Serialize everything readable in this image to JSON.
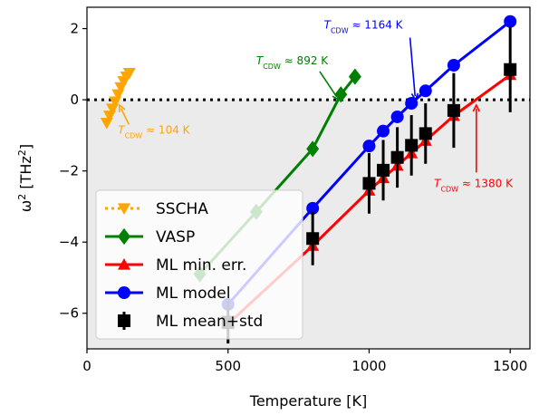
{
  "chart_data": {
    "type": "line",
    "xlabel": "Temperature [K]",
    "ylabel_main": "ω",
    "ylabel_sup": "2",
    "ylabel_unit_pre": " [THz",
    "ylabel_unit_sup": "2",
    "ylabel_unit_post": "]",
    "xlim": [
      0,
      1570
    ],
    "ylim": [
      -7.0,
      2.6
    ],
    "xticks": [
      0,
      500,
      1000,
      1500
    ],
    "xtick_labels": [
      "0",
      "500",
      "1000",
      "1500"
    ],
    "yticks": [
      2,
      0,
      -2,
      -4,
      -6
    ],
    "ytick_labels": [
      "2",
      "0",
      "−2",
      "−4",
      "−6"
    ],
    "negative_region_color": "#ebebeb",
    "series": [
      {
        "name": "SSCHA",
        "color": "#ffa500",
        "marker": "triangle-down",
        "linestyle": "dotted",
        "x": [
          70,
          80,
          90,
          100,
          110,
          120,
          130,
          140,
          150
        ],
        "y": [
          -0.65,
          -0.45,
          -0.25,
          -0.05,
          0.15,
          0.35,
          0.52,
          0.65,
          0.75
        ]
      },
      {
        "name": "VASP",
        "color": "#008000",
        "marker": "diamond",
        "linestyle": "solid",
        "x": [
          400,
          600,
          800,
          900,
          950
        ],
        "y": [
          -4.9,
          -3.15,
          -1.38,
          0.15,
          0.65
        ]
      },
      {
        "name": "ML min. err.",
        "color": "#ff0000",
        "marker": "triangle-up",
        "linestyle": "solid",
        "x": [
          500,
          800,
          1000,
          1050,
          1100,
          1150,
          1200,
          1300,
          1500
        ],
        "y": [
          -6.3,
          -4.1,
          -2.55,
          -2.2,
          -1.85,
          -1.5,
          -1.15,
          -0.45,
          0.7
        ]
      },
      {
        "name": "ML model",
        "color": "#0000ff",
        "marker": "circle",
        "linestyle": "solid",
        "x": [
          500,
          800,
          1000,
          1050,
          1100,
          1150,
          1200,
          1300,
          1500
        ],
        "y": [
          -5.75,
          -3.05,
          -1.3,
          -0.88,
          -0.48,
          -0.1,
          0.25,
          0.97,
          2.2
        ]
      },
      {
        "name": "ML mean+std",
        "color": "#000000",
        "marker": "square",
        "linestyle": "none",
        "x": [
          500,
          800,
          1000,
          1050,
          1100,
          1150,
          1200,
          1300,
          1500
        ],
        "y": [
          -6.25,
          -3.9,
          -2.35,
          -1.98,
          -1.62,
          -1.28,
          -0.95,
          -0.3,
          0.85
        ],
        "err": [
          0.6,
          0.75,
          0.85,
          0.85,
          0.85,
          0.85,
          0.85,
          1.05,
          1.2
        ]
      }
    ],
    "annotations": [
      {
        "text_main": "T",
        "text_sub": "CDW",
        "text_rest": " ≈ 104 K",
        "color": "#ffa500",
        "text_x": 110,
        "text_y": -0.95,
        "arrow_to": [
          115,
          -0.15
        ]
      },
      {
        "text_main": "T",
        "text_sub": "CDW",
        "text_rest": " ≈ 892 K",
        "color": "#008000",
        "text_x": 600,
        "text_y": 1.0,
        "arrow_to": [
          892,
          0.0
        ]
      },
      {
        "text_main": "T",
        "text_sub": "CDW",
        "text_rest": " ≈ 1164 K",
        "color": "#0000ff",
        "text_x": 840,
        "text_y": 2.0,
        "arrow_to": [
          1164,
          0.0
        ]
      },
      {
        "text_main": "T",
        "text_sub": "CDW",
        "text_rest": " ≈ 1380 K",
        "color": "#ff0000",
        "text_x": 1230,
        "text_y": -2.45,
        "arrow_to": [
          1380,
          -0.15
        ]
      }
    ],
    "legend": {
      "position": "lower-left"
    }
  }
}
